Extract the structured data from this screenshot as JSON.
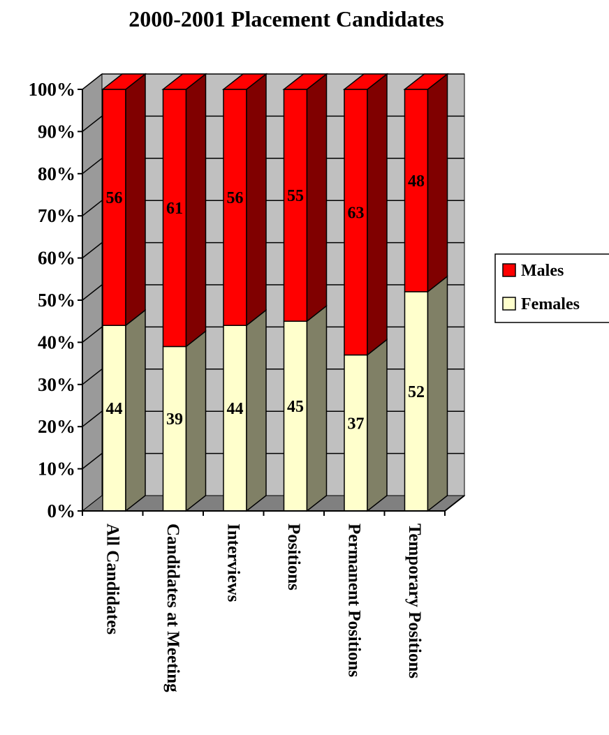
{
  "chart_data": {
    "type": "bar",
    "stacked": true,
    "percent_stacked": true,
    "style": "3d",
    "title": "2000-2001 Placement Candidates",
    "xlabel": "",
    "ylabel": "",
    "ylim": [
      0,
      100
    ],
    "yticks": [
      "0%",
      "10%",
      "20%",
      "30%",
      "40%",
      "50%",
      "60%",
      "70%",
      "80%",
      "90%",
      "100%"
    ],
    "grid": true,
    "legend_position": "right",
    "categories": [
      "All Candidates",
      "Candidates at Meeting",
      "Interviews",
      "Positions",
      "Permanent Positions",
      "Temporary Positions"
    ],
    "series": [
      {
        "name": "Females",
        "values": [
          44,
          39,
          44,
          45,
          37,
          52
        ],
        "color": "#ffffcc",
        "side_color": "#808066"
      },
      {
        "name": "Males",
        "values": [
          56,
          61,
          56,
          55,
          63,
          48
        ],
        "color": "#ff0000",
        "side_color": "#800000"
      }
    ]
  }
}
